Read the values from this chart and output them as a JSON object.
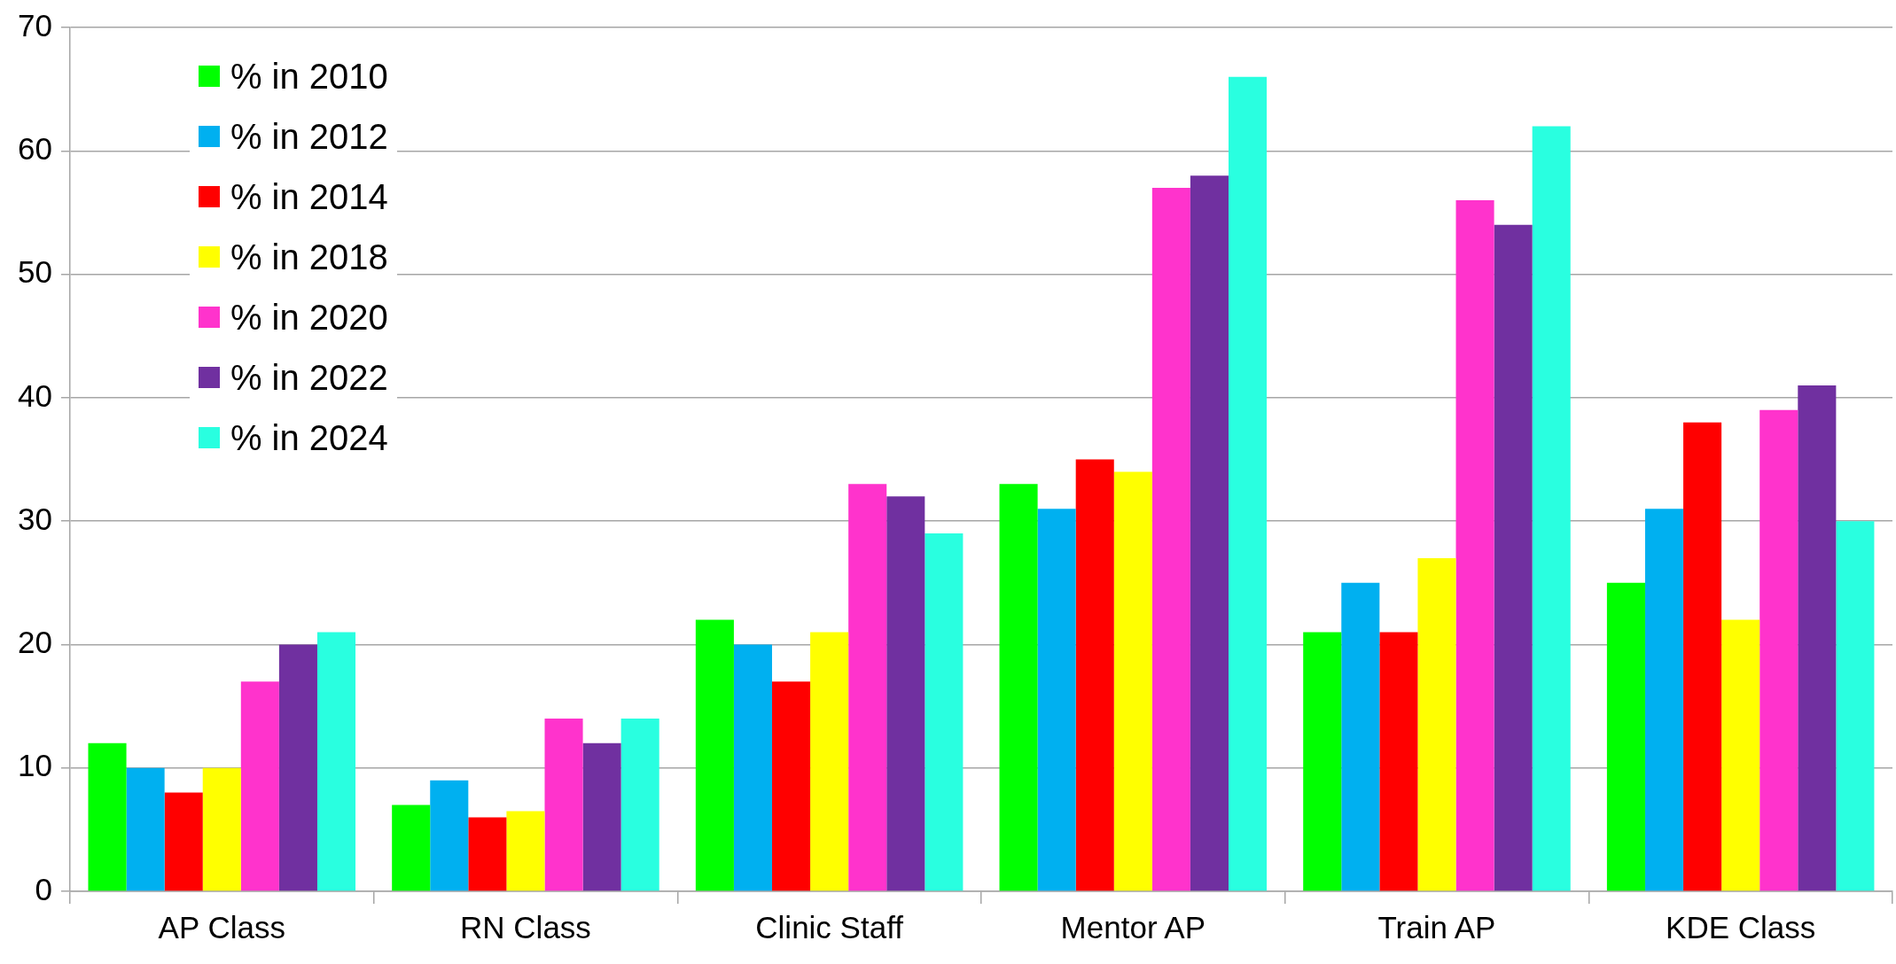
{
  "chart_data": {
    "type": "bar",
    "categories": [
      "AP Class",
      "RN Class",
      "Clinic Staff",
      "Mentor AP",
      "Train AP",
      "KDE Class"
    ],
    "series": [
      {
        "name": "% in 2010",
        "color": "#00ff00",
        "values": [
          12,
          7,
          22,
          33,
          21,
          25
        ]
      },
      {
        "name": "% in 2012",
        "color": "#00b0f0",
        "values": [
          10,
          9,
          20,
          31,
          25,
          31
        ]
      },
      {
        "name": "% in 2014",
        "color": "#ff0000",
        "values": [
          8,
          6,
          17,
          35,
          21,
          38
        ]
      },
      {
        "name": "% in 2018",
        "color": "#ffff00",
        "values": [
          10,
          6.5,
          21,
          34,
          27,
          22
        ]
      },
      {
        "name": "% in 2020",
        "color": "#ff33cc",
        "values": [
          17,
          14,
          33,
          57,
          56,
          39
        ]
      },
      {
        "name": "% in 2022",
        "color": "#7030a0",
        "values": [
          20,
          12,
          32,
          58,
          54,
          41
        ]
      },
      {
        "name": "% in 2024",
        "color": "#29ffe0",
        "values": [
          21,
          14,
          29,
          66,
          62,
          30
        ]
      }
    ],
    "ylim": [
      0,
      70
    ],
    "yticks": [
      0,
      10,
      20,
      30,
      40,
      50,
      60,
      70
    ],
    "grid": "y",
    "legend": "top left"
  }
}
